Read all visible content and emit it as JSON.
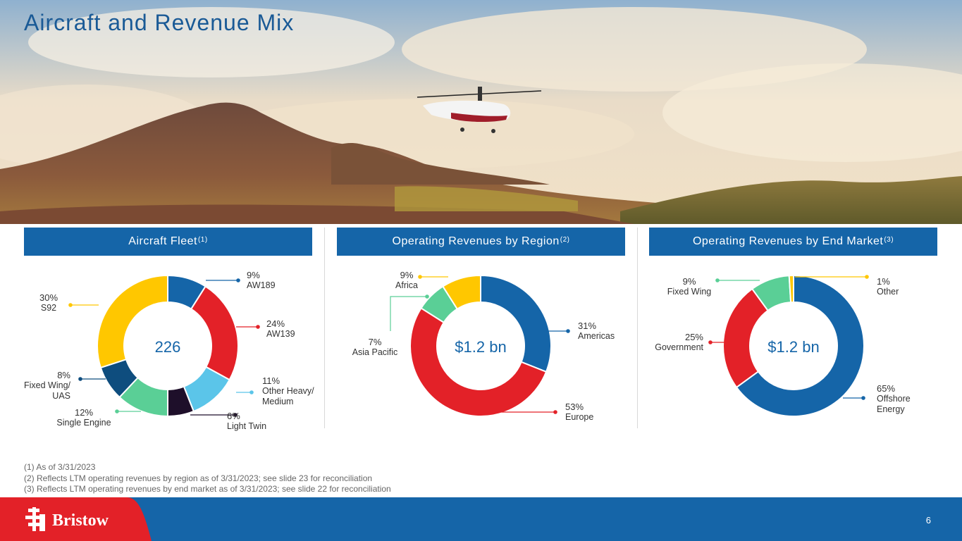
{
  "page": {
    "title": "Aircraft and Revenue Mix",
    "page_number": "6"
  },
  "brand": {
    "logo_text": "Bristow",
    "primary_color": "#1565a8",
    "accent_red": "#e32128"
  },
  "panels": [
    {
      "title": "Aircraft Fleet",
      "note": "(1)"
    },
    {
      "title": "Operating Revenues by Region",
      "note": "(2)"
    },
    {
      "title": "Operating Revenues by End Market",
      "note": "(3)"
    }
  ],
  "chart_data": [
    {
      "type": "pie",
      "title": "Aircraft Fleet",
      "center_label": "226",
      "categories": [
        "AW189",
        "AW139",
        "Other Heavy/ Medium",
        "Light Twin",
        "Single Engine",
        "Fixed Wing/ UAS",
        "S92"
      ],
      "values": [
        9,
        24,
        11,
        6,
        12,
        8,
        30
      ],
      "value_labels": [
        "9%",
        "24%",
        "11%",
        "6%",
        "12%",
        "8%",
        "30%"
      ],
      "colors": [
        "#1565a8",
        "#e32128",
        "#5bc5e9",
        "#1e0f2a",
        "#5acf96",
        "#0e4d7e",
        "#ffc700"
      ]
    },
    {
      "type": "pie",
      "title": "Operating Revenues by Region",
      "center_label": "$1.2 bn",
      "categories": [
        "Americas",
        "Europe",
        "Asia Pacific",
        "Africa"
      ],
      "values": [
        31,
        53,
        7,
        9
      ],
      "value_labels": [
        "31%",
        "53%",
        "7%",
        "9%"
      ],
      "colors": [
        "#1565a8",
        "#e32128",
        "#5acf96",
        "#ffc700"
      ]
    },
    {
      "type": "pie",
      "title": "Operating Revenues by End Market",
      "center_label": "$1.2 bn",
      "categories": [
        "Offshore Energy",
        "Government",
        "Fixed Wing",
        "Other"
      ],
      "values": [
        65,
        25,
        9,
        1
      ],
      "value_labels": [
        "65%",
        "25%",
        "9%",
        "1%"
      ],
      "colors": [
        "#1565a8",
        "#e32128",
        "#5acf96",
        "#ffc700"
      ]
    }
  ],
  "footnotes": [
    "(1) As of 3/31/2023",
    "(2) Reflects LTM operating revenues by region as of 3/31/2023; see slide 23 for reconciliation",
    "(3) Reflects LTM operating revenues by end market as of 3/31/2023; see slide 22 for reconciliation"
  ]
}
